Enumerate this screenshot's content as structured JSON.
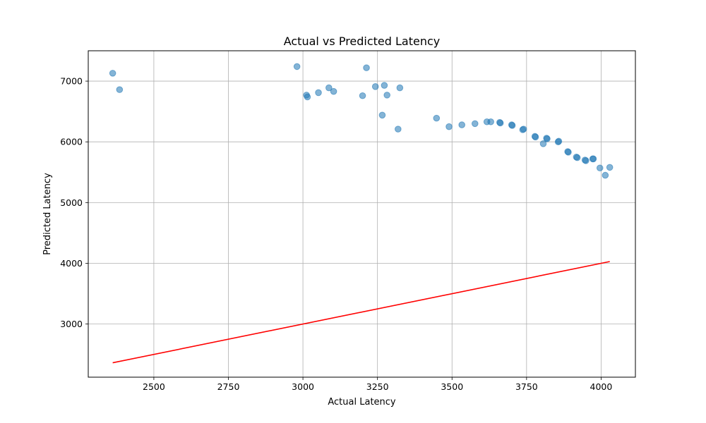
{
  "chart_data": {
    "type": "scatter",
    "title": "Actual vs Predicted Latency",
    "xlabel": "Actual Latency",
    "ylabel": "Predicted Latency",
    "xlim": [
      2280,
      4115
    ],
    "ylim": [
      2125,
      7500
    ],
    "xticks": [
      2500,
      2750,
      3000,
      3250,
      3500,
      3750,
      4000
    ],
    "yticks": [
      3000,
      4000,
      5000,
      6000,
      7000
    ],
    "grid": true,
    "colors": {
      "points": "#1f77b4",
      "reference_line": "#ff0000"
    },
    "point_alpha": 0.55,
    "points": [
      [
        2362,
        7130
      ],
      [
        2385,
        6860
      ],
      [
        2980,
        7240
      ],
      [
        3012,
        6770
      ],
      [
        3015,
        6740
      ],
      [
        3052,
        6810
      ],
      [
        3087,
        6890
      ],
      [
        3103,
        6830
      ],
      [
        3200,
        6760
      ],
      [
        3213,
        7220
      ],
      [
        3243,
        6910
      ],
      [
        3266,
        6440
      ],
      [
        3273,
        6930
      ],
      [
        3282,
        6770
      ],
      [
        3319,
        6210
      ],
      [
        3325,
        6890
      ],
      [
        3448,
        6390
      ],
      [
        3490,
        6250
      ],
      [
        3533,
        6280
      ],
      [
        3577,
        6300
      ],
      [
        3617,
        6330
      ],
      [
        3630,
        6330
      ],
      [
        3660,
        6320
      ],
      [
        3662,
        6310
      ],
      [
        3700,
        6280
      ],
      [
        3702,
        6270
      ],
      [
        3737,
        6200
      ],
      [
        3740,
        6210
      ],
      [
        3778,
        6090
      ],
      [
        3780,
        6080
      ],
      [
        3806,
        5970
      ],
      [
        3817,
        6060
      ],
      [
        3819,
        6050
      ],
      [
        3856,
        6000
      ],
      [
        3858,
        6010
      ],
      [
        3888,
        5840
      ],
      [
        3890,
        5830
      ],
      [
        3917,
        5750
      ],
      [
        3920,
        5740
      ],
      [
        3946,
        5700
      ],
      [
        3949,
        5690
      ],
      [
        3972,
        5720
      ],
      [
        3974,
        5720
      ],
      [
        3996,
        5570
      ],
      [
        4014,
        5450
      ],
      [
        4029,
        5580
      ]
    ],
    "reference_line": {
      "x": [
        2362,
        4029
      ],
      "y": [
        2362,
        4029
      ]
    }
  }
}
